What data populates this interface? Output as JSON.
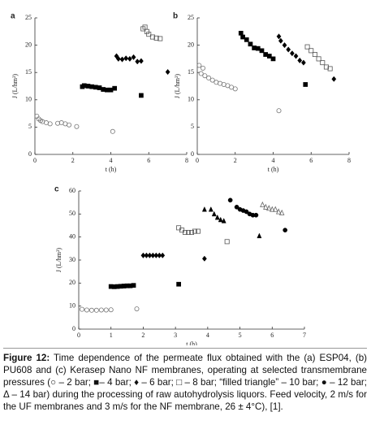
{
  "chart_data": [
    {
      "type": "scatter",
      "panel": "a",
      "xlabel": "t (h)",
      "ylabel": "J (L/hm²)",
      "xlim": [
        0,
        8
      ],
      "xticks": [
        0,
        2,
        4,
        6,
        8
      ],
      "ylim": [
        0,
        25
      ],
      "yticks": [
        0,
        5,
        10,
        15,
        20,
        25
      ],
      "grid": false,
      "series": [
        {
          "marker": "circle-open",
          "color": "#777777",
          "x": [
            0.1,
            0.2,
            0.3,
            0.4,
            0.6,
            0.8,
            1.2,
            1.4,
            1.6,
            1.8,
            2.2,
            4.1
          ],
          "values": [
            7,
            6.5,
            6.2,
            6,
            5.8,
            5.6,
            5.7,
            5.8,
            5.6,
            5.4,
            5.1,
            4.2
          ]
        },
        {
          "marker": "square-filled",
          "color": "#000000",
          "x": [
            2.5,
            2.6,
            2.8,
            3.0,
            3.2,
            3.4,
            3.6,
            3.8,
            4.0,
            4.2,
            5.6
          ],
          "values": [
            12.4,
            12.6,
            12.5,
            12.4,
            12.3,
            12.2,
            11.9,
            11.8,
            11.8,
            12.1,
            10.8
          ]
        },
        {
          "marker": "diamond-filled",
          "color": "#000000",
          "x": [
            4.3,
            4.4,
            4.6,
            4.8,
            5.0,
            5.2,
            5.4,
            5.6,
            7.0
          ],
          "values": [
            18,
            17.5,
            17.4,
            17.6,
            17.5,
            17.8,
            17,
            17.1,
            15.1
          ]
        },
        {
          "marker": "square-open",
          "color": "#555555",
          "x": [
            5.7,
            5.8,
            5.9,
            6.0,
            6.2,
            6.4,
            6.6
          ],
          "values": [
            23,
            23.3,
            22.5,
            22,
            21.5,
            21.3,
            21.2
          ]
        }
      ]
    },
    {
      "type": "scatter",
      "panel": "b",
      "xlabel": "t (h)",
      "ylabel": "J (L/hm²)",
      "xlim": [
        0,
        8
      ],
      "xticks": [
        0,
        2,
        4,
        6,
        8
      ],
      "ylim": [
        0,
        25
      ],
      "yticks": [
        0,
        5,
        10,
        15,
        20,
        25
      ],
      "grid": false,
      "series": [
        {
          "marker": "circle-open",
          "color": "#777777",
          "x": [
            0.1,
            0.3,
            0.2,
            0.4,
            0.6,
            0.8,
            1.0,
            1.2,
            1.4,
            1.6,
            1.8,
            2.0,
            4.3
          ],
          "values": [
            16.3,
            15.8,
            14.8,
            14.4,
            14,
            13.6,
            13.2,
            13,
            12.8,
            12.6,
            12.3,
            12,
            8
          ]
        },
        {
          "marker": "square-filled",
          "color": "#000000",
          "x": [
            2.3,
            2.4,
            2.6,
            2.8,
            3.0,
            3.2,
            3.4,
            3.6,
            3.8,
            4.0,
            5.7
          ],
          "values": [
            22.2,
            21.5,
            21,
            20.2,
            19.5,
            19.4,
            19,
            18.3,
            18,
            17.5,
            12.8
          ]
        },
        {
          "marker": "diamond-filled",
          "color": "#000000",
          "x": [
            4.3,
            4.4,
            4.6,
            4.8,
            5.0,
            5.2,
            5.4,
            5.6,
            7.2
          ],
          "values": [
            21.6,
            20.8,
            20,
            19.2,
            18.5,
            18,
            17.2,
            16.8,
            13.8
          ]
        },
        {
          "marker": "square-open",
          "color": "#555555",
          "x": [
            5.8,
            6.0,
            6.2,
            6.4,
            6.6,
            6.8,
            7.0
          ],
          "values": [
            19.7,
            19,
            18.3,
            17.5,
            16.8,
            16,
            15.7
          ]
        }
      ]
    },
    {
      "type": "scatter",
      "panel": "c",
      "xlabel": "t (h)",
      "ylabel": "J (L/hm²)",
      "xlim": [
        0,
        7
      ],
      "xticks": [
        0,
        1,
        2,
        3,
        4,
        5,
        6,
        7
      ],
      "ylim": [
        0,
        60
      ],
      "yticks": [
        0,
        10,
        20,
        30,
        40,
        50,
        60
      ],
      "grid": false,
      "series": [
        {
          "marker": "circle-open",
          "color": "#777777",
          "x": [
            0.1,
            0.25,
            0.4,
            0.55,
            0.7,
            0.85,
            1.0,
            1.8
          ],
          "values": [
            8.6,
            8.3,
            8.2,
            8.2,
            8.3,
            8.3,
            8.4,
            8.8
          ]
        },
        {
          "marker": "square-filled",
          "color": "#000000",
          "x": [
            1.0,
            1.1,
            1.2,
            1.3,
            1.4,
            1.5,
            1.6,
            1.7,
            3.1
          ],
          "values": [
            18.5,
            18.4,
            18.5,
            18.6,
            18.7,
            18.8,
            18.8,
            19,
            19.5
          ]
        },
        {
          "marker": "diamond-filled",
          "color": "#000000",
          "x": [
            2.0,
            2.1,
            2.2,
            2.3,
            2.4,
            2.5,
            2.6,
            3.9
          ],
          "values": [
            32,
            32,
            32,
            32,
            32,
            32,
            32,
            30.6
          ]
        },
        {
          "marker": "square-open",
          "color": "#555555",
          "x": [
            3.1,
            3.2,
            3.3,
            3.4,
            3.5,
            3.6,
            3.7,
            4.6
          ],
          "values": [
            44,
            43,
            42,
            42,
            42,
            42.5,
            42.5,
            38
          ]
        },
        {
          "marker": "triangle-filled",
          "color": "#000000",
          "x": [
            3.9,
            4.1,
            4.2,
            4.3,
            4.4,
            4.5,
            5.6
          ],
          "values": [
            52,
            52,
            50,
            48.5,
            47.5,
            47,
            40.5
          ]
        },
        {
          "marker": "circle-filled",
          "color": "#000000",
          "x": [
            4.7,
            4.9,
            5.0,
            5.1,
            5.2,
            5.3,
            5.4,
            5.5,
            6.4
          ],
          "values": [
            56,
            53,
            52,
            51.5,
            51,
            50,
            49.5,
            49.5,
            43
          ]
        },
        {
          "marker": "triangle-open",
          "color": "#666666",
          "x": [
            5.7,
            5.8,
            5.9,
            6.0,
            6.1,
            6.2,
            6.3
          ],
          "values": [
            54,
            53,
            52.5,
            52,
            52,
            51,
            50.5
          ]
        }
      ]
    }
  ],
  "caption_label": "Figure 12:",
  "caption": "Time dependence of the permeate flux obtained with the (a) ESP04, (b) PU608 and (c) Kerasep Nano NF membranes, operating at selected transmembrane pressures (○ – 2 bar; ■– 4 bar; ♦ – 6 bar; □ – 8 bar; “filled triangle” – 10 bar; ● – 12 bar; Δ – 14 bar) during the processing of raw autohydrolysis liquors. Feed velocity, 2 m/s for the UF membranes and 3 m/s for the NF membrane, 26 ± 4°C), [1]."
}
